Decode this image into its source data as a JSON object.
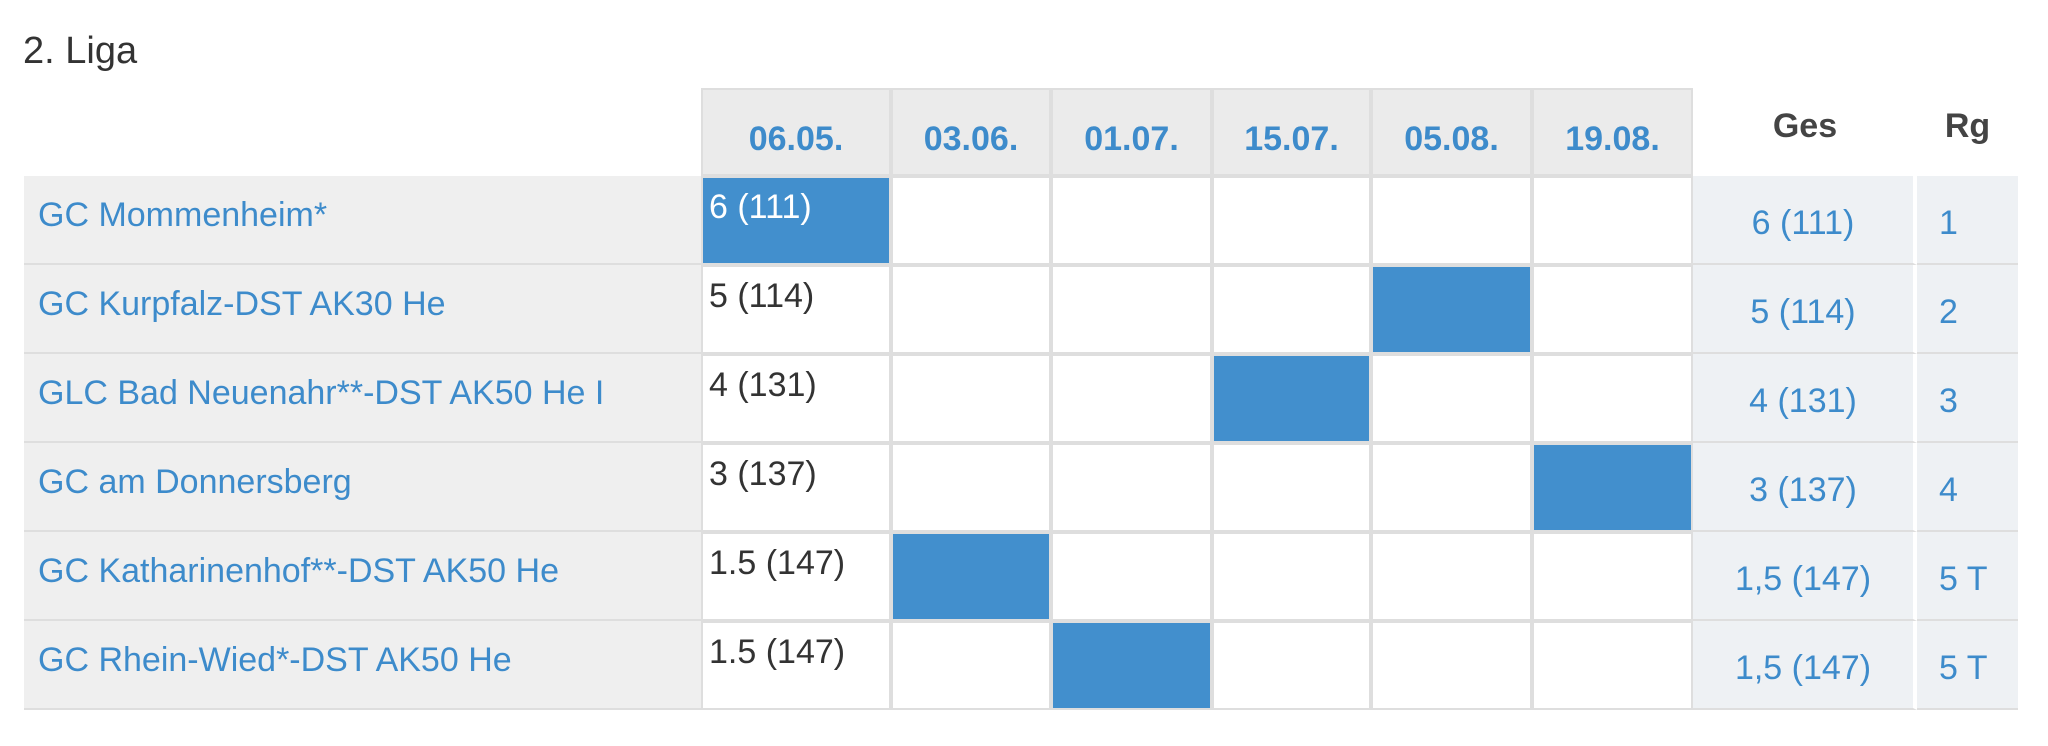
{
  "title": "2. Liga",
  "table": {
    "dates": [
      "06.05.",
      "03.06.",
      "01.07.",
      "15.07.",
      "05.08.",
      "19.08."
    ],
    "total_header": "Ges",
    "rank_header": "Rg",
    "rows": [
      {
        "team": "GC Mommenheim*",
        "score": "6 (111)",
        "played": "06.05.",
        "total": "6 (111)",
        "rank": "1"
      },
      {
        "team": "GC Kurpfalz-DST AK30 He",
        "score": "5 (114)",
        "played": "05.08.",
        "total": "5 (114)",
        "rank": "2"
      },
      {
        "team": "GLC Bad Neuenahr**-DST AK50 He I",
        "score": "4 (131)",
        "played": "15.07.",
        "total": "4 (131)",
        "rank": "3"
      },
      {
        "team": "GC am Donnersberg",
        "score": "3 (137)",
        "played": "19.08.",
        "total": "3 (137)",
        "rank": "4"
      },
      {
        "team": "GC Katharinenhof**-DST AK50 He",
        "score": "1.5 (147)",
        "played": "03.06.",
        "total": "1,5 (147)",
        "rank": "5 T"
      },
      {
        "team": "GC Rhein-Wied*-DST AK50 He",
        "score": "1.5 (147)",
        "played": "01.07.",
        "total": "1,5 (147)",
        "rank": "5 T"
      }
    ]
  }
}
